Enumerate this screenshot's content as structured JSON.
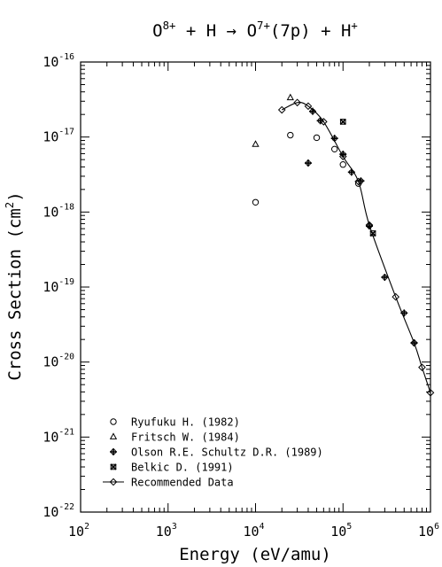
{
  "chart_data": {
    "type": "scatter",
    "title": {
      "parts": [
        {
          "t": "O",
          "k": "n"
        },
        {
          "t": "8+",
          "k": "sup"
        },
        {
          "t": " + H → ",
          "k": "n"
        },
        {
          "t": "O",
          "k": "n"
        },
        {
          "t": "7+",
          "k": "sup"
        },
        {
          "t": "(7p) + H",
          "k": "n"
        },
        {
          "t": "+",
          "k": "sup"
        }
      ]
    },
    "xlabel": "Energy (eV/amu)",
    "ylabel": {
      "parts": [
        {
          "t": "Cross Section (cm",
          "k": "n"
        },
        {
          "t": "2",
          "k": "sup"
        },
        {
          "t": ")",
          "k": "n"
        }
      ]
    },
    "xscale": "log",
    "yscale": "log",
    "xlim": [
      100,
      1000000
    ],
    "ylim": [
      1e-22,
      1e-16
    ],
    "x_ticks": [
      {
        "base": "10",
        "exp": "2",
        "value": 100
      },
      {
        "base": "10",
        "exp": "3",
        "value": 1000
      },
      {
        "base": "10",
        "exp": "4",
        "value": 10000
      },
      {
        "base": "10",
        "exp": "5",
        "value": 100000
      },
      {
        "base": "10",
        "exp": "6",
        "value": 1000000
      }
    ],
    "y_ticks": [
      {
        "base": "10",
        "exp": "-16",
        "value": 1e-16
      },
      {
        "base": "10",
        "exp": "-17",
        "value": 1e-17
      },
      {
        "base": "10",
        "exp": "-18",
        "value": 1e-18
      },
      {
        "base": "10",
        "exp": "-19",
        "value": 1e-19
      },
      {
        "base": "10",
        "exp": "-20",
        "value": 1e-20
      },
      {
        "base": "10",
        "exp": "-21",
        "value": 1e-21
      },
      {
        "base": "10",
        "exp": "-22",
        "value": 1e-22
      }
    ],
    "legend_position": "bottom-left",
    "series": [
      {
        "name": "Ryufuku H. (1982)",
        "marker": "circle",
        "points": [
          [
            10000,
            1.35e-18
          ],
          [
            25000,
            1.06e-17
          ],
          [
            50000,
            9.8e-18
          ],
          [
            80000,
            6.9e-18
          ],
          [
            100000,
            4.3e-18
          ],
          [
            150000,
            2.4e-18
          ]
        ]
      },
      {
        "name": "Fritsch W. (1984)",
        "marker": "triangle",
        "points": [
          [
            10000,
            8e-18
          ],
          [
            25000,
            3.35e-17
          ]
        ]
      },
      {
        "name": "Olson R.E. Schultz D.R. (1989)",
        "marker": "circle-cross",
        "points": [
          [
            40000,
            4.5e-18
          ],
          [
            45000,
            2.2e-17
          ],
          [
            55000,
            1.65e-17
          ],
          [
            80000,
            9.6e-18
          ],
          [
            100000,
            5.9e-18
          ],
          [
            125000,
            3.4e-18
          ],
          [
            160000,
            2.6e-18
          ],
          [
            200000,
            6.5e-19
          ],
          [
            300000,
            1.35e-19
          ],
          [
            500000,
            4.5e-20
          ],
          [
            650000,
            1.8e-20
          ]
        ]
      },
      {
        "name": "Belkic D. (1991)",
        "marker": "x-box",
        "points": [
          [
            100000,
            1.6e-17
          ],
          [
            220000,
            5.2e-19
          ]
        ]
      },
      {
        "name": "Recommended Data",
        "marker": "diamond",
        "line": true,
        "points": [
          [
            20000,
            2.3e-17
          ],
          [
            30000,
            2.88e-17
          ],
          [
            40000,
            2.58e-17
          ],
          [
            60000,
            1.6e-17
          ],
          [
            100000,
            5.5e-18
          ],
          [
            150000,
            2.55e-18
          ],
          [
            200000,
            6.7e-19
          ],
          [
            400000,
            7.4e-20
          ],
          [
            650000,
            1.8e-20
          ],
          [
            800000,
            8.5e-21
          ],
          [
            1000000,
            3.9e-21
          ]
        ]
      }
    ]
  }
}
